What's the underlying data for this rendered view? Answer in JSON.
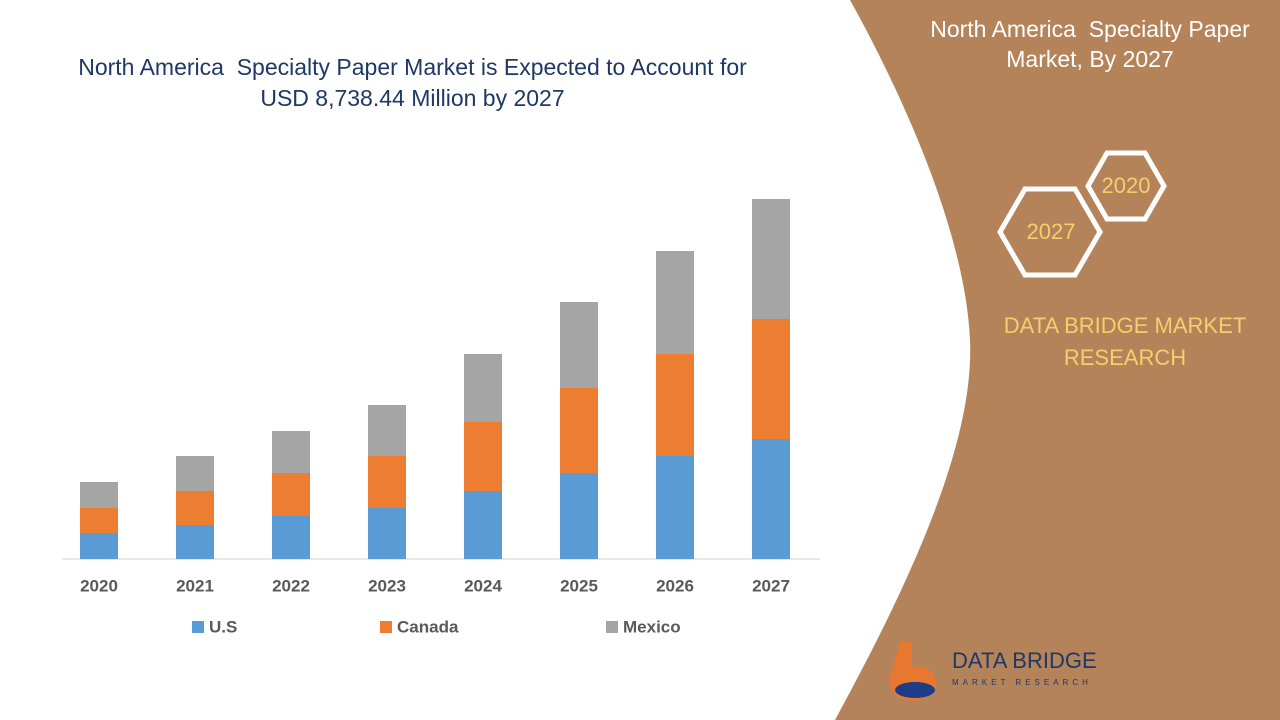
{
  "chart_data": {
    "type": "stacked-bar",
    "title": "North America  Specialty Paper Market is Expected to Account for USD 8,738.44 Million by 2027",
    "categories": [
      "2020",
      "2021",
      "2022",
      "2023",
      "2024",
      "2025",
      "2026",
      "2027"
    ],
    "series": [
      {
        "name": "U.S",
        "color": "#5b9bd5",
        "values": [
          26,
          34,
          43,
          51,
          68,
          86,
          103,
          120
        ]
      },
      {
        "name": "Canada",
        "color": "#ed7d31",
        "values": [
          25,
          34,
          43,
          52,
          69,
          85,
          102,
          120
        ]
      },
      {
        "name": "Mexico",
        "color": "#a5a5a5",
        "values": [
          26,
          35,
          42,
          51,
          68,
          86,
          103,
          120
        ]
      }
    ]
  },
  "side_panel": {
    "title": "North America  Specialty Paper Market, By 2027",
    "hexagons": [
      "2020",
      "2027"
    ],
    "brand": "DATA BRIDGE MARKET RESEARCH",
    "logo": {
      "name": "DATA BRIDGE",
      "tagline": "MARKET RESEARCH"
    }
  }
}
